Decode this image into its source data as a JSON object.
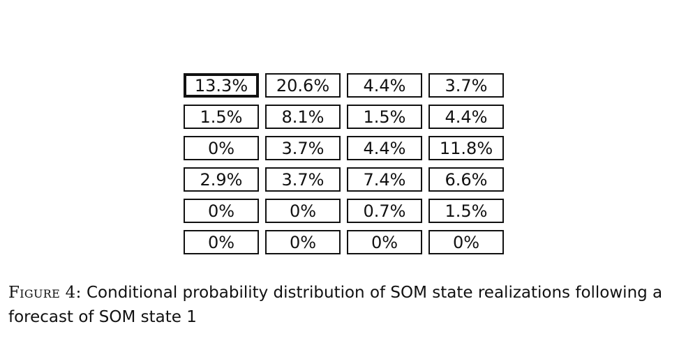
{
  "grid": {
    "rows": [
      [
        "13.3%",
        "20.6%",
        "4.4%",
        "3.7%"
      ],
      [
        "1.5%",
        "8.1%",
        "1.5%",
        "4.4%"
      ],
      [
        "0%",
        "3.7%",
        "4.4%",
        "11.8%"
      ],
      [
        "2.9%",
        "3.7%",
        "7.4%",
        "6.6%"
      ],
      [
        "0%",
        "0%",
        "0.7%",
        "1.5%"
      ],
      [
        "0%",
        "0%",
        "0%",
        "0%"
      ]
    ],
    "highlighted_cell": [
      0,
      0
    ]
  },
  "caption": {
    "label": "Figure 4:",
    "text": "Conditional probability distribution of SOM state realizations following a forecast of SOM state 1"
  }
}
